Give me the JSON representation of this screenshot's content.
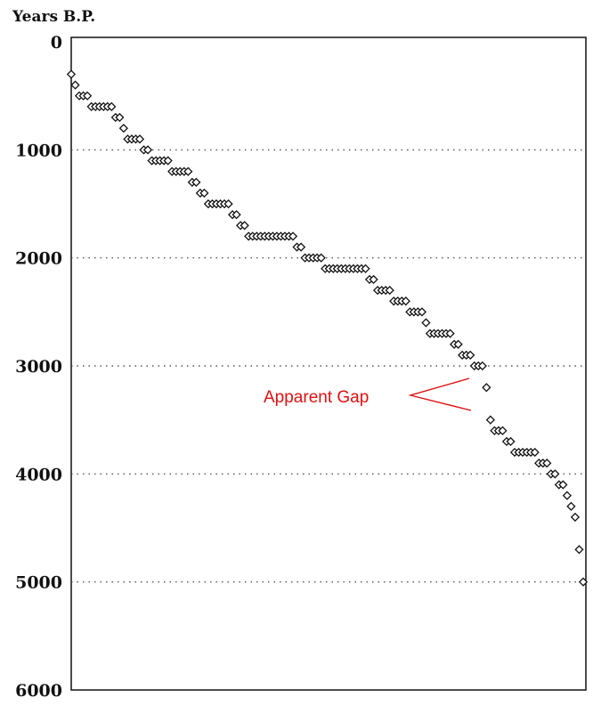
{
  "chart_data": {
    "type": "scatter",
    "ylabel": "Years B.P.",
    "ylim": [
      0,
      6000
    ],
    "y_inverted": true,
    "yticks": [
      0,
      1000,
      2000,
      3000,
      4000,
      5000,
      6000
    ],
    "ytick_labels": [
      "0",
      "1000",
      "2000",
      "3000",
      "4000",
      "5000",
      "6000"
    ],
    "grid": "horizontal dotted at 1000, 2000, 3000, 4000, 5000",
    "marker": "open-diamond",
    "marker_color": "#111111",
    "annotation": {
      "text": "Apparent Gap",
      "color": "#dd1111",
      "between_values": [
        3200,
        3500
      ]
    },
    "values": [
      300,
      400,
      500,
      500,
      500,
      600,
      600,
      600,
      600,
      600,
      600,
      700,
      700,
      800,
      900,
      900,
      900,
      900,
      1000,
      1000,
      1100,
      1100,
      1100,
      1100,
      1100,
      1200,
      1200,
      1200,
      1200,
      1200,
      1300,
      1300,
      1400,
      1400,
      1500,
      1500,
      1500,
      1500,
      1500,
      1500,
      1600,
      1600,
      1700,
      1700,
      1800,
      1800,
      1800,
      1800,
      1800,
      1800,
      1800,
      1800,
      1800,
      1800,
      1800,
      1800,
      1900,
      1900,
      2000,
      2000,
      2000,
      2000,
      2000,
      2100,
      2100,
      2100,
      2100,
      2100,
      2100,
      2100,
      2100,
      2100,
      2100,
      2100,
      2200,
      2200,
      2300,
      2300,
      2300,
      2300,
      2400,
      2400,
      2400,
      2400,
      2500,
      2500,
      2500,
      2500,
      2600,
      2700,
      2700,
      2700,
      2700,
      2700,
      2700,
      2800,
      2800,
      2900,
      2900,
      2900,
      3000,
      3000,
      3000,
      3200,
      3500,
      3600,
      3600,
      3600,
      3700,
      3700,
      3800,
      3800,
      3800,
      3800,
      3800,
      3800,
      3900,
      3900,
      3900,
      4000,
      4000,
      4100,
      4100,
      4200,
      4300,
      4400,
      4700,
      5000
    ]
  }
}
